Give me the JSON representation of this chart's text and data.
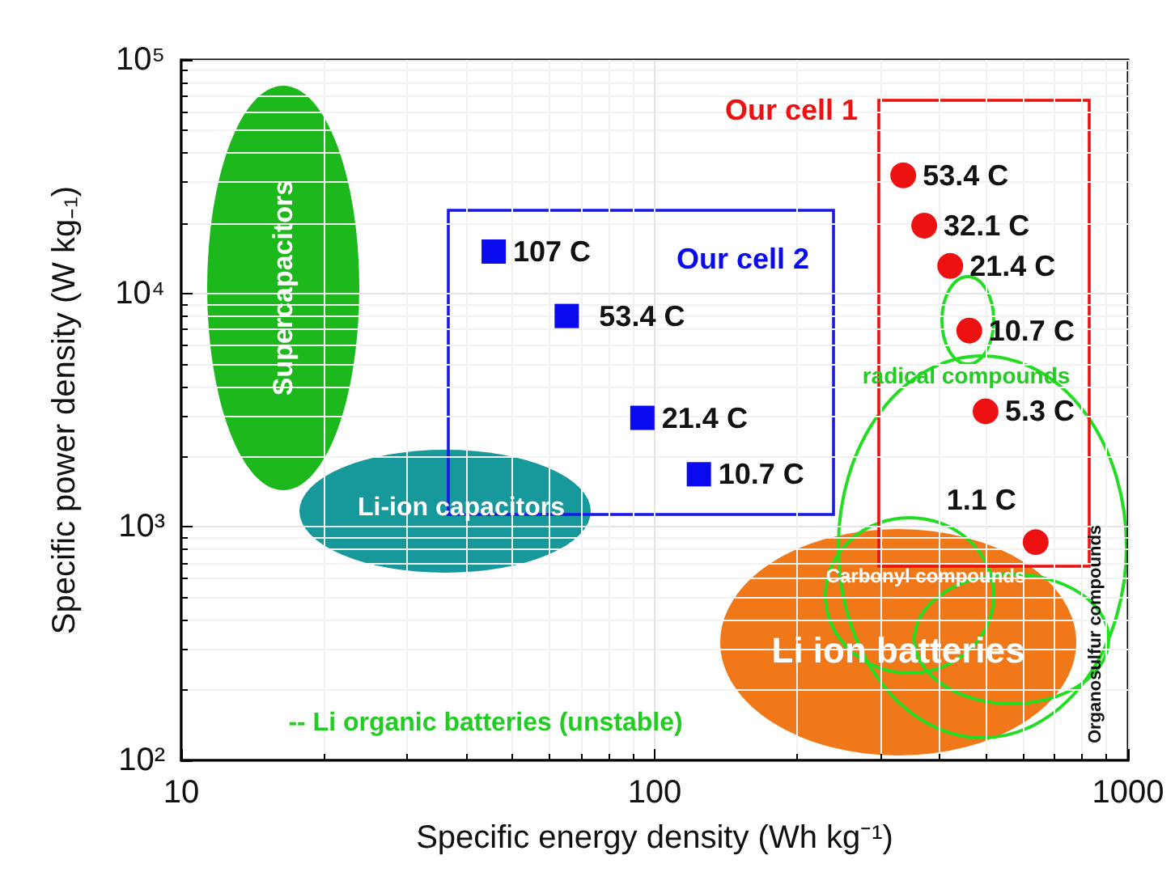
{
  "chart_data": {
    "type": "scatter",
    "xlabel": "Specific energy density (Wh kg⁻¹)",
    "ylabel": "Specific power density (W kg₋₁)",
    "log": "xy",
    "grid": true,
    "xlim": [
      10,
      1000
    ],
    "xticks": [
      10,
      100,
      1000
    ],
    "ylim": [
      100,
      100000
    ],
    "yticks": [
      {
        "value": 100,
        "label": "10²"
      },
      {
        "value": 1000,
        "label": "10³"
      },
      {
        "value": 10000,
        "label": "10⁴"
      },
      {
        "value": 100000,
        "label": "10⁵"
      }
    ],
    "series": [
      {
        "name": "Our cell 1",
        "marker": "circle",
        "color": "#ee1111",
        "x": [
          335,
          371,
          421,
          462,
          500,
          638
        ],
        "values": [
          32000,
          19500,
          13100,
          6930,
          3125,
          860
        ]
      },
      {
        "name": "Our cell 2",
        "marker": "square",
        "color": "#0a0aee",
        "x": [
          45.7,
          65.2,
          94.2,
          124
        ],
        "values": [
          15100,
          8000,
          2930,
          1680
        ]
      }
    ],
    "annotations": [
      "Supercapacitors",
      "Li-ion capacitors",
      "Li ion batteries",
      "Carbonyl compounds",
      "radical compounds",
      "Organosulfur compounds",
      "-- Li organic batteries (unstable)",
      {
        "text": "53.4 C",
        "x": 335,
        "y": 32000
      },
      {
        "text": "32.1 C",
        "x": 371,
        "y": 19500
      },
      {
        "text": "21.4 C",
        "x": 421,
        "y": 13100
      },
      {
        "text": "10.7 C",
        "x": 462,
        "y": 6930
      },
      {
        "text": "5.3 C",
        "x": 500,
        "y": 3125
      },
      {
        "text": "1.1 C",
        "x": 638,
        "y": 860
      },
      {
        "text": "107 C",
        "x": 45.7,
        "y": 15100
      },
      {
        "text": "53.4 C",
        "x": 65.2,
        "y": 8000
      },
      {
        "text": "21.4 C",
        "x": 94.2,
        "y": 2930
      },
      {
        "text": "10.7 C",
        "x": 124,
        "y": 1680
      }
    ]
  }
}
